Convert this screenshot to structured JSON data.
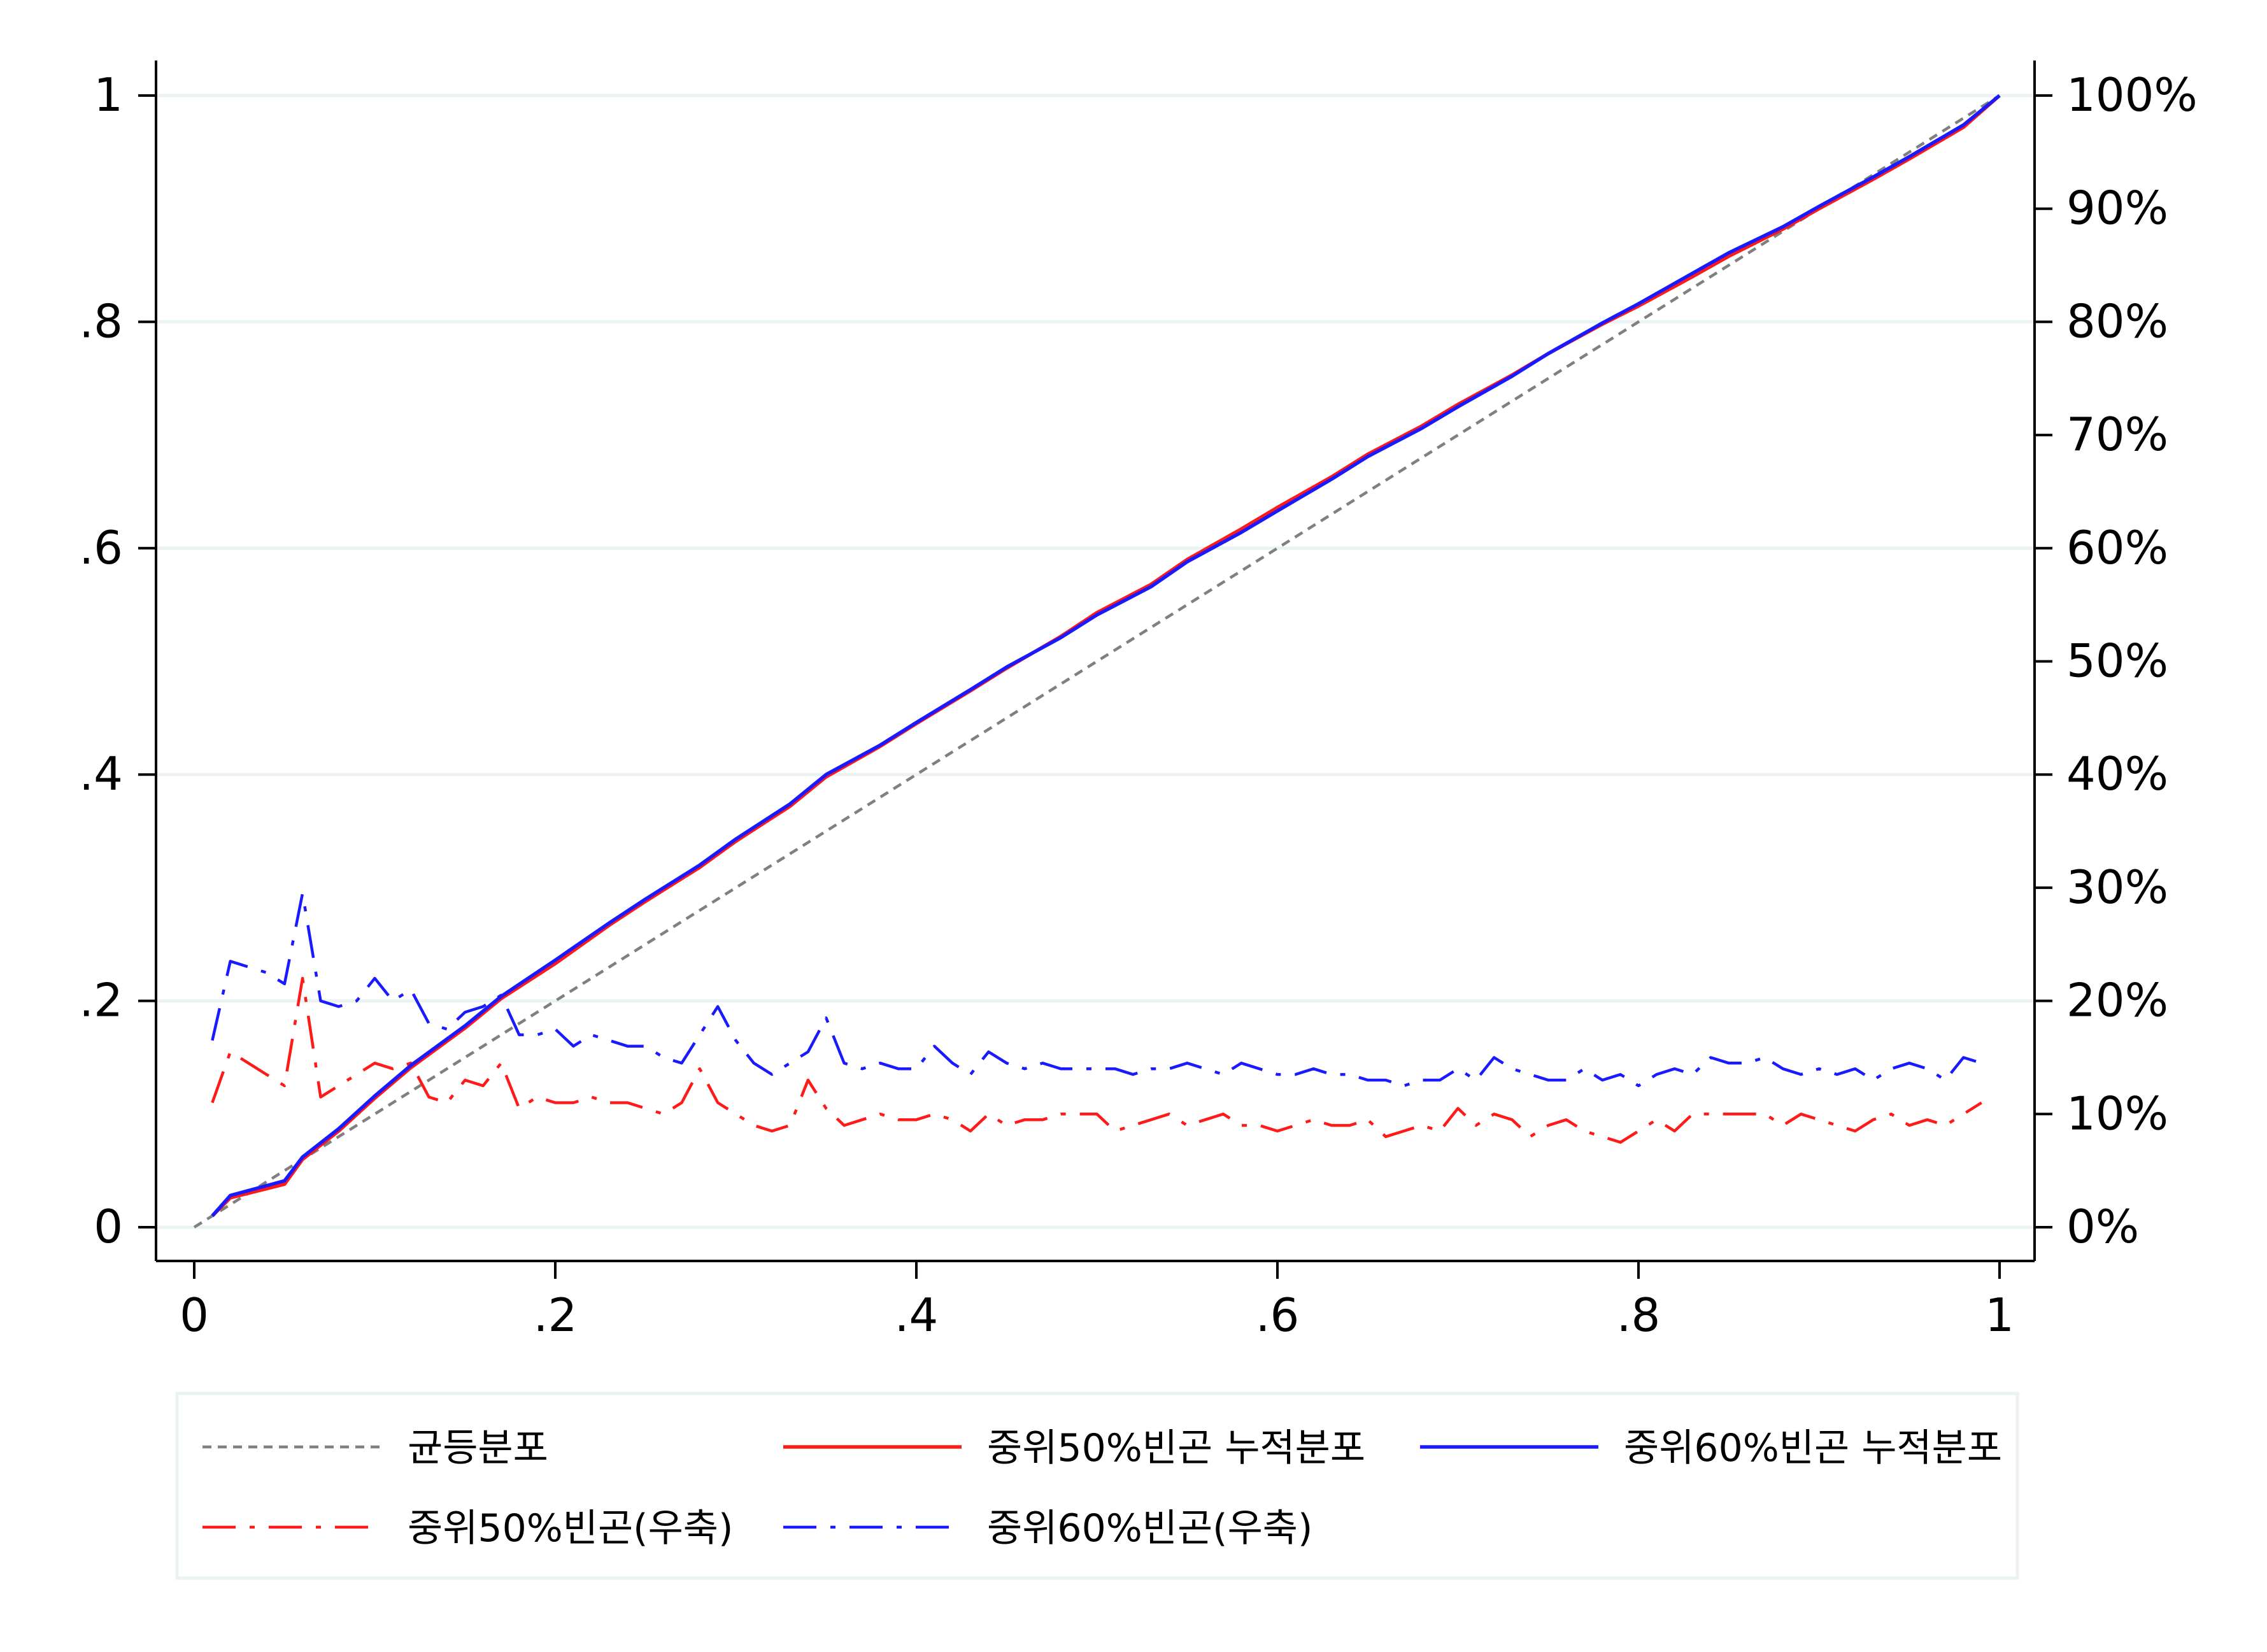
{
  "colors": {
    "grid": "#eaf2f3",
    "axis": "#000000",
    "uniform": "#808080",
    "red": "#ff1a1a",
    "blue": "#1a1aff",
    "legend_border": "#eaf2f3"
  },
  "chart_data": {
    "type": "line",
    "title": "",
    "xlabel": "",
    "ylabel_left": "",
    "ylabel_right": "",
    "xlim": [
      0,
      1
    ],
    "ylim_left": [
      0,
      1
    ],
    "ylim_right": [
      0,
      100
    ],
    "grid": true,
    "legend_position": "bottom",
    "x_ticks": [
      {
        "value": 0,
        "label": "0"
      },
      {
        "value": 0.2,
        "label": ".2"
      },
      {
        "value": 0.4,
        "label": ".4"
      },
      {
        "value": 0.6,
        "label": ".6"
      },
      {
        "value": 0.8,
        "label": ".8"
      },
      {
        "value": 1,
        "label": "1"
      }
    ],
    "y_left_ticks": [
      {
        "value": 0,
        "label": "0"
      },
      {
        "value": 0.2,
        "label": ".2"
      },
      {
        "value": 0.4,
        "label": ".4"
      },
      {
        "value": 0.6,
        "label": ".6"
      },
      {
        "value": 0.8,
        "label": ".8"
      },
      {
        "value": 1,
        "label": "1"
      }
    ],
    "y_right_ticks": [
      {
        "value": 0,
        "label": "0%"
      },
      {
        "value": 10,
        "label": "10%"
      },
      {
        "value": 20,
        "label": "20%"
      },
      {
        "value": 30,
        "label": "30%"
      },
      {
        "value": 40,
        "label": "40%"
      },
      {
        "value": 50,
        "label": "50%"
      },
      {
        "value": 60,
        "label": "60%"
      },
      {
        "value": 70,
        "label": "70%"
      },
      {
        "value": 80,
        "label": "80%"
      },
      {
        "value": 90,
        "label": "90%"
      },
      {
        "value": 100,
        "label": "100%"
      }
    ],
    "series": [
      {
        "name": "균등분포",
        "axis": "left",
        "color": "#808080",
        "style": "dotted",
        "x": [
          0,
          1
        ],
        "y": [
          0,
          1
        ]
      },
      {
        "name": "중위50%빈곤 누적분포",
        "axis": "left",
        "color": "#ff1a1a",
        "style": "solid",
        "x": [
          0.01,
          0.02,
          0.05,
          0.06,
          0.08,
          0.1,
          0.12,
          0.15,
          0.17,
          0.2,
          0.23,
          0.25,
          0.28,
          0.3,
          0.33,
          0.35,
          0.38,
          0.4,
          0.43,
          0.45,
          0.48,
          0.5,
          0.53,
          0.55,
          0.58,
          0.6,
          0.63,
          0.65,
          0.68,
          0.7,
          0.73,
          0.75,
          0.78,
          0.8,
          0.83,
          0.85,
          0.88,
          0.9,
          0.93,
          0.95,
          0.98,
          1.0
        ],
        "y": [
          0.01,
          0.026,
          0.038,
          0.06,
          0.085,
          0.114,
          0.141,
          0.176,
          0.202,
          0.233,
          0.267,
          0.288,
          0.318,
          0.341,
          0.372,
          0.398,
          0.425,
          0.445,
          0.474,
          0.494,
          0.522,
          0.543,
          0.568,
          0.59,
          0.617,
          0.636,
          0.663,
          0.683,
          0.708,
          0.727,
          0.753,
          0.772,
          0.798,
          0.814,
          0.84,
          0.858,
          0.882,
          0.9,
          0.926,
          0.944,
          0.972,
          1.0
        ]
      },
      {
        "name": "중위60%빈곤 누적분포",
        "axis": "left",
        "color": "#1a1aff",
        "style": "solid",
        "x": [
          0.01,
          0.02,
          0.05,
          0.06,
          0.08,
          0.1,
          0.12,
          0.15,
          0.17,
          0.2,
          0.23,
          0.25,
          0.28,
          0.3,
          0.33,
          0.35,
          0.38,
          0.4,
          0.43,
          0.45,
          0.48,
          0.5,
          0.53,
          0.55,
          0.58,
          0.6,
          0.63,
          0.65,
          0.68,
          0.7,
          0.73,
          0.75,
          0.78,
          0.8,
          0.83,
          0.85,
          0.88,
          0.9,
          0.93,
          0.95,
          0.98,
          1.0
        ],
        "y": [
          0.01,
          0.028,
          0.041,
          0.062,
          0.087,
          0.116,
          0.143,
          0.178,
          0.204,
          0.236,
          0.269,
          0.29,
          0.32,
          0.343,
          0.374,
          0.4,
          0.426,
          0.446,
          0.475,
          0.495,
          0.521,
          0.541,
          0.566,
          0.588,
          0.614,
          0.633,
          0.661,
          0.681,
          0.706,
          0.725,
          0.752,
          0.772,
          0.799,
          0.816,
          0.843,
          0.861,
          0.884,
          0.902,
          0.928,
          0.946,
          0.974,
          1.0
        ]
      },
      {
        "name": "중위50%빈곤(우축)",
        "axis": "right",
        "color": "#ff1a1a",
        "style": "dashdot",
        "x": [
          0.01,
          0.02,
          0.03,
          0.04,
          0.05,
          0.06,
          0.07,
          0.08,
          0.09,
          0.1,
          0.11,
          0.12,
          0.13,
          0.14,
          0.15,
          0.16,
          0.17,
          0.18,
          0.19,
          0.2,
          0.21,
          0.22,
          0.23,
          0.24,
          0.25,
          0.26,
          0.27,
          0.28,
          0.29,
          0.3,
          0.31,
          0.32,
          0.33,
          0.34,
          0.35,
          0.36,
          0.37,
          0.38,
          0.39,
          0.4,
          0.41,
          0.42,
          0.43,
          0.44,
          0.45,
          0.46,
          0.47,
          0.48,
          0.49,
          0.5,
          0.51,
          0.52,
          0.53,
          0.54,
          0.55,
          0.56,
          0.57,
          0.58,
          0.59,
          0.6,
          0.61,
          0.62,
          0.63,
          0.64,
          0.65,
          0.66,
          0.67,
          0.68,
          0.69,
          0.7,
          0.71,
          0.72,
          0.73,
          0.74,
          0.75,
          0.76,
          0.77,
          0.78,
          0.79,
          0.8,
          0.81,
          0.82,
          0.83,
          0.84,
          0.85,
          0.86,
          0.87,
          0.88,
          0.89,
          0.9,
          0.91,
          0.92,
          0.93,
          0.94,
          0.95,
          0.96,
          0.97,
          0.98,
          0.99
        ],
        "y": [
          11,
          15.5,
          14.5,
          13.5,
          12.5,
          22,
          11.5,
          12.5,
          13.5,
          14.5,
          14,
          14.5,
          11.5,
          11,
          13,
          12.5,
          14.5,
          10.5,
          11.5,
          11,
          11,
          11.5,
          11,
          11,
          10.5,
          10,
          11,
          14,
          11,
          10,
          9,
          8.5,
          9,
          13,
          10.5,
          9,
          9.5,
          10,
          9.5,
          9.5,
          10,
          9.5,
          8.5,
          10,
          9,
          9.5,
          9.5,
          10,
          10,
          10,
          8.5,
          9,
          9.5,
          10,
          9,
          9.5,
          10,
          9,
          9,
          8.5,
          9,
          9.5,
          9,
          9,
          9.5,
          8,
          8.5,
          9,
          8.5,
          10.5,
          9,
          10,
          9.5,
          8,
          9,
          9.5,
          8.5,
          8,
          7.5,
          8.5,
          9.5,
          8.5,
          10,
          10,
          10,
          10,
          10,
          9,
          10,
          9.5,
          9,
          8.5,
          9.5,
          10,
          9,
          9.5,
          9,
          10,
          11
        ]
      },
      {
        "name": "중위60%빈곤(우축)",
        "axis": "right",
        "color": "#1a1aff",
        "style": "dashdot",
        "x": [
          0.01,
          0.02,
          0.03,
          0.04,
          0.05,
          0.06,
          0.07,
          0.08,
          0.09,
          0.1,
          0.11,
          0.12,
          0.13,
          0.14,
          0.15,
          0.16,
          0.17,
          0.18,
          0.19,
          0.2,
          0.21,
          0.22,
          0.23,
          0.24,
          0.25,
          0.26,
          0.27,
          0.28,
          0.29,
          0.3,
          0.31,
          0.32,
          0.33,
          0.34,
          0.35,
          0.36,
          0.37,
          0.38,
          0.39,
          0.4,
          0.41,
          0.42,
          0.43,
          0.44,
          0.45,
          0.46,
          0.47,
          0.48,
          0.49,
          0.5,
          0.51,
          0.52,
          0.53,
          0.54,
          0.55,
          0.56,
          0.57,
          0.58,
          0.59,
          0.6,
          0.61,
          0.62,
          0.63,
          0.64,
          0.65,
          0.66,
          0.67,
          0.68,
          0.69,
          0.7,
          0.71,
          0.72,
          0.73,
          0.74,
          0.75,
          0.76,
          0.77,
          0.78,
          0.79,
          0.8,
          0.81,
          0.82,
          0.83,
          0.84,
          0.85,
          0.86,
          0.87,
          0.88,
          0.89,
          0.9,
          0.91,
          0.92,
          0.93,
          0.94,
          0.95,
          0.96,
          0.97,
          0.98,
          0.99
        ],
        "y": [
          16.5,
          23.5,
          23,
          22.5,
          21.5,
          29.5,
          20,
          19.5,
          20,
          22,
          20,
          21,
          18,
          17.5,
          19,
          19.5,
          20.5,
          17,
          17,
          17.5,
          16,
          17,
          16.5,
          16,
          16,
          15,
          14.5,
          17,
          19.5,
          16.5,
          14.5,
          13.5,
          14.5,
          15.5,
          18.5,
          14.5,
          14,
          14.5,
          14,
          14,
          16,
          14.5,
          13.5,
          15.5,
          14.5,
          14,
          14.5,
          14,
          14,
          14,
          14,
          13.5,
          14,
          14,
          14.5,
          14,
          13.5,
          14.5,
          14,
          13.5,
          13.5,
          14,
          13.5,
          13.5,
          13,
          13,
          12.5,
          13,
          13,
          14,
          13,
          15,
          14,
          13.5,
          13,
          13,
          14,
          13,
          13.5,
          12.5,
          13.5,
          14,
          13.5,
          15,
          14.5,
          14.5,
          15,
          14,
          13.5,
          14,
          13.5,
          14,
          13,
          14,
          14.5,
          14,
          13,
          15,
          14.5
        ]
      }
    ]
  },
  "legend": {
    "items": [
      {
        "label": "균등분포"
      },
      {
        "label": "중위50%빈곤 누적분포"
      },
      {
        "label": "중위60%빈곤 누적분포"
      },
      {
        "label": "중위50%빈곤(우축)"
      },
      {
        "label": "중위60%빈곤(우축)"
      }
    ]
  }
}
